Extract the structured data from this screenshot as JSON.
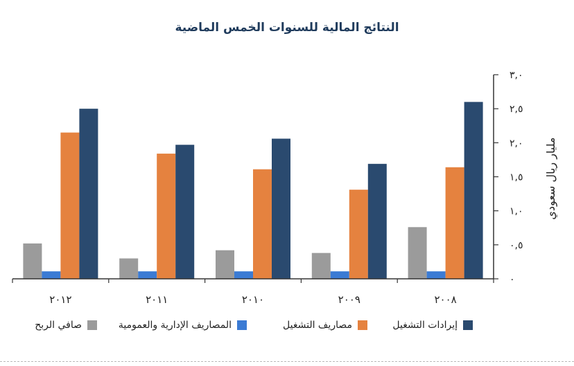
{
  "chart_data": {
    "type": "bar",
    "title": "النتائج المالية للسنوات الخمس الماضية",
    "ylabel": "مليار ريال سعودي",
    "ylim": [
      0,
      3.0
    ],
    "yticks": [
      {
        "value": 0,
        "label": "٠"
      },
      {
        "value": 0.5,
        "label": "٠,٥"
      },
      {
        "value": 1.0,
        "label": "١,٠"
      },
      {
        "value": 1.5,
        "label": "١,٥"
      },
      {
        "value": 2.0,
        "label": "٢,٠"
      },
      {
        "value": 2.5,
        "label": "٢,٥"
      },
      {
        "value": 3.0,
        "label": "٣,٠"
      }
    ],
    "categories": [
      "٢٠١٢",
      "٢٠١١",
      "٢٠١٠",
      "٢٠٠٩",
      "٢٠٠٨"
    ],
    "series": [
      {
        "name": "صافي الربح",
        "color": "#9b9b9b",
        "values": [
          0.52,
          0.3,
          0.42,
          0.38,
          0.76
        ]
      },
      {
        "name": "المصاريف الإدارية والعمومية",
        "color": "#3b7bd4",
        "values": [
          0.11,
          0.11,
          0.11,
          0.11,
          0.11
        ]
      },
      {
        "name": "مصاريف التشغيل",
        "color": "#e5823f",
        "values": [
          2.15,
          1.84,
          1.61,
          1.31,
          1.64
        ]
      },
      {
        "name": "إيرادات التشغيل",
        "color": "#2a4a6f",
        "values": [
          2.5,
          1.97,
          2.06,
          1.69,
          2.6
        ]
      }
    ],
    "legend_position": "bottom",
    "grid": false
  }
}
